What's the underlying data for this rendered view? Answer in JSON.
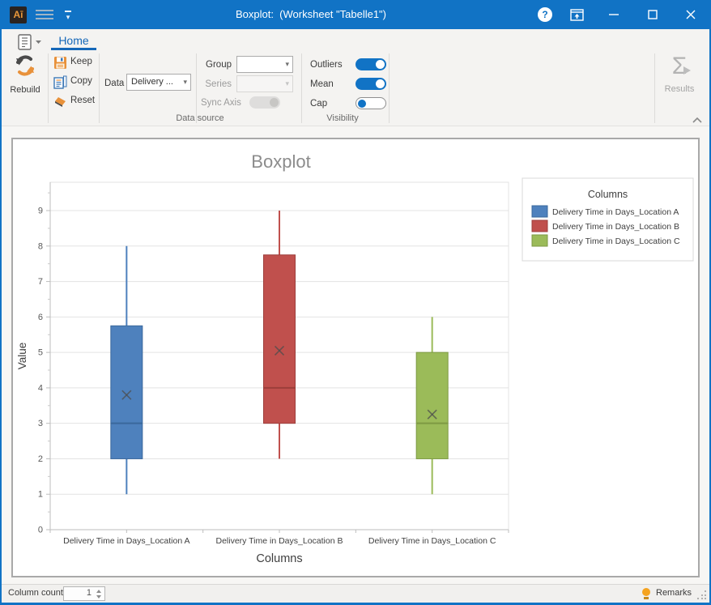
{
  "titlebar": {
    "title": "Boxplot:  (Worksheet \"Tabelle1\")",
    "logo_text": "Aī",
    "help_glyph": "?"
  },
  "ribbon": {
    "tab_home": "Home",
    "rebuild_label": "Rebuild",
    "keep_label": "Keep",
    "copy_label": "Copy",
    "reset_label": "Reset",
    "data_label": "Data",
    "data_value": "Delivery ...",
    "group_label": "Group",
    "group_value": "",
    "series_label": "Series",
    "series_value": "",
    "sync_axis_label": "Sync Axis",
    "outliers_label": "Outliers",
    "mean_label": "Mean",
    "cap_label": "Cap",
    "toggle_states": {
      "outliers": true,
      "mean": true,
      "cap": false,
      "sync_axis": false
    },
    "caption_data_source": "Data source",
    "caption_visibility": "Visibility",
    "results_label": "Results",
    "sigma_glyph": "Σ"
  },
  "statusbar": {
    "column_count_label": "Column count",
    "column_count_value": "1",
    "remarks_label": "Remarks"
  },
  "colors": {
    "titlebar": "#1173C5",
    "accent": "#1567B8"
  },
  "chart_data": {
    "type": "boxplot",
    "title": "Boxplot",
    "xlabel": "Columns",
    "ylabel": "Value",
    "legend_title": "Columns",
    "ylim": [
      0,
      9.8
    ],
    "ytick_step": 1,
    "yminor_step": 0.5,
    "grid": true,
    "legend_position": "right",
    "categories": [
      "Delivery Time in Days_Location A",
      "Delivery Time in Days_Location B",
      "Delivery Time in Days_Location C"
    ],
    "series": [
      {
        "name": "Delivery Time in Days_Location A",
        "fill": "#4E81BD",
        "edge": "#3A689C",
        "min": 1,
        "q1": 2,
        "median": 3,
        "mean": 3.8,
        "q3": 5.75,
        "max": 8
      },
      {
        "name": "Delivery Time in Days_Location B",
        "fill": "#C0504D",
        "edge": "#9C3E3B",
        "min": 2,
        "q1": 3,
        "median": 4,
        "mean": 5.05,
        "q3": 7.75,
        "max": 9
      },
      {
        "name": "Delivery Time in Days_Location C",
        "fill": "#9BBB59",
        "edge": "#7D9A43",
        "min": 1,
        "q1": 2,
        "median": 3,
        "mean": 3.25,
        "q3": 5,
        "max": 6
      }
    ],
    "options": {
      "outliers_shown": true,
      "mean_shown": true,
      "cap_shown": false
    }
  }
}
